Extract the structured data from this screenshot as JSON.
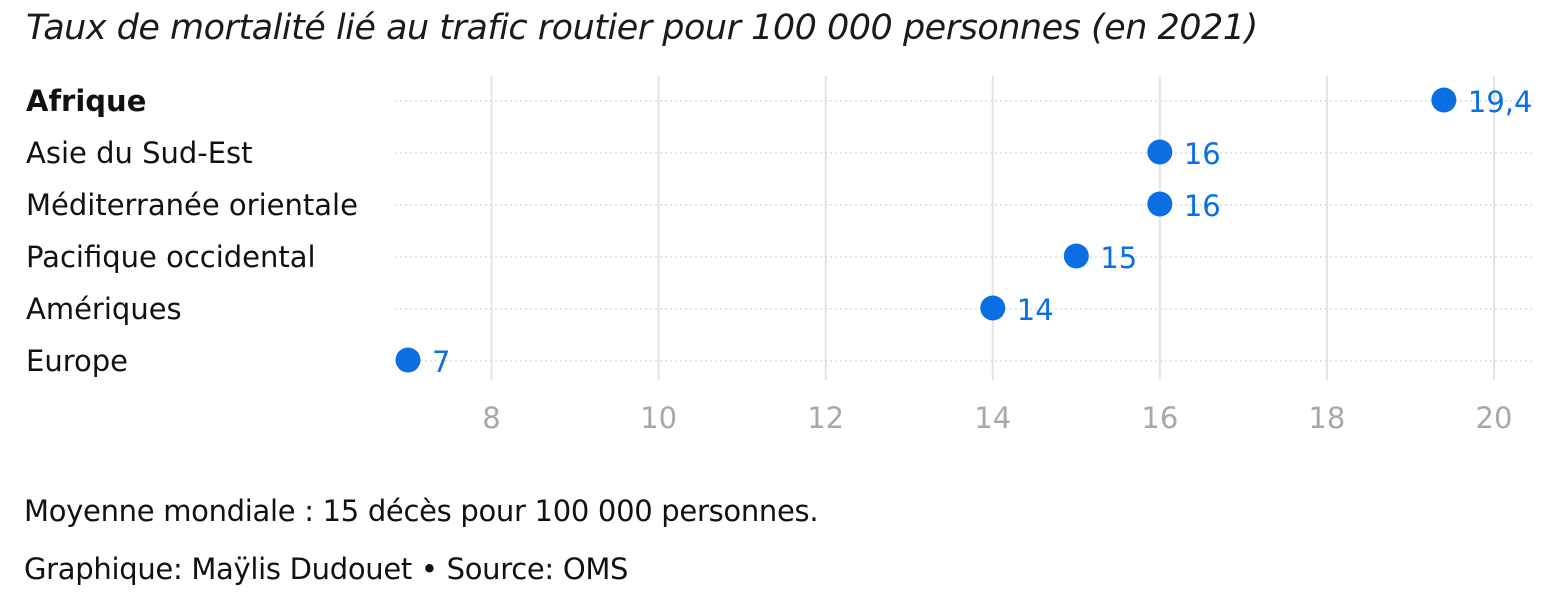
{
  "chart_data": {
    "type": "scatter",
    "title": "Taux de mortalité lié au trafic routier pour 100 000 personnes (en 2021)",
    "categories": [
      "Afrique",
      "Asie du Sud-Est",
      "Méditerranée orientale",
      "Pacifique occidental",
      "Amériques",
      "Europe"
    ],
    "values": [
      19.4,
      16,
      16,
      15,
      14,
      7
    ],
    "value_labels": [
      "19,4",
      "16",
      "16",
      "15",
      "14",
      "7"
    ],
    "highlighted_category": "Afrique",
    "xlim": [
      7,
      20
    ],
    "xticks": [
      8,
      10,
      12,
      14,
      16,
      18,
      20
    ],
    "grid": true,
    "point_color": "#0b6fe3",
    "grid_color": "#e4e4e4",
    "tick_color": "#a8a8a8"
  },
  "footer": {
    "note": "Moyenne mondiale : 15 décès pour 100 000 personnes.",
    "credit": "Graphique: Maÿlis Dudouet • Source: OMS"
  }
}
